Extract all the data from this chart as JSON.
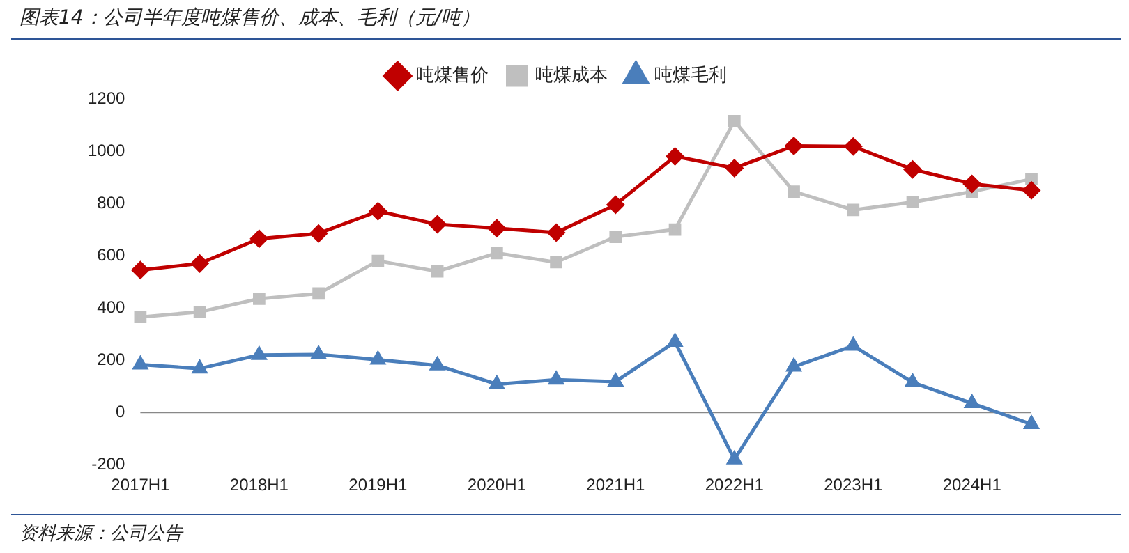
{
  "chart_data": {
    "type": "line",
    "title": "图表14：公司半年度吨煤售价、成本、毛利（元/吨）",
    "categories": [
      "2017H1",
      null,
      "2018H1",
      null,
      "2019H1",
      null,
      "2020H1",
      null,
      "2021H1",
      null,
      "2022H1",
      null,
      "2023H1",
      null,
      "2024H1",
      null
    ],
    "series": [
      {
        "name": "吨煤售价",
        "color": "#c00000",
        "marker": "diamond",
        "values": [
          545,
          570,
          665,
          685,
          770,
          720,
          705,
          688,
          795,
          980,
          935,
          1020,
          1018,
          930,
          875,
          850
        ]
      },
      {
        "name": "吨煤成本",
        "color": "#bfbfbf",
        "marker": "square",
        "values": [
          365,
          385,
          435,
          455,
          580,
          540,
          610,
          575,
          672,
          700,
          1115,
          845,
          775,
          805,
          845,
          893
        ]
      },
      {
        "name": "吨煤毛利",
        "color": "#4a7ebb",
        "marker": "triangle",
        "values": [
          183,
          168,
          220,
          222,
          202,
          180,
          108,
          125,
          118,
          270,
          -180,
          175,
          255,
          115,
          35,
          -45
        ]
      }
    ],
    "ylim": [
      -200,
      1200
    ],
    "yticks": [
      -200,
      0,
      200,
      400,
      600,
      800,
      1000,
      1200
    ],
    "grid": false,
    "legend": "top",
    "ref_lines": [
      {
        "axis": "y",
        "value": 0,
        "color": "#888888"
      }
    ],
    "annotations": [
      "资料来源：公司公告"
    ]
  }
}
